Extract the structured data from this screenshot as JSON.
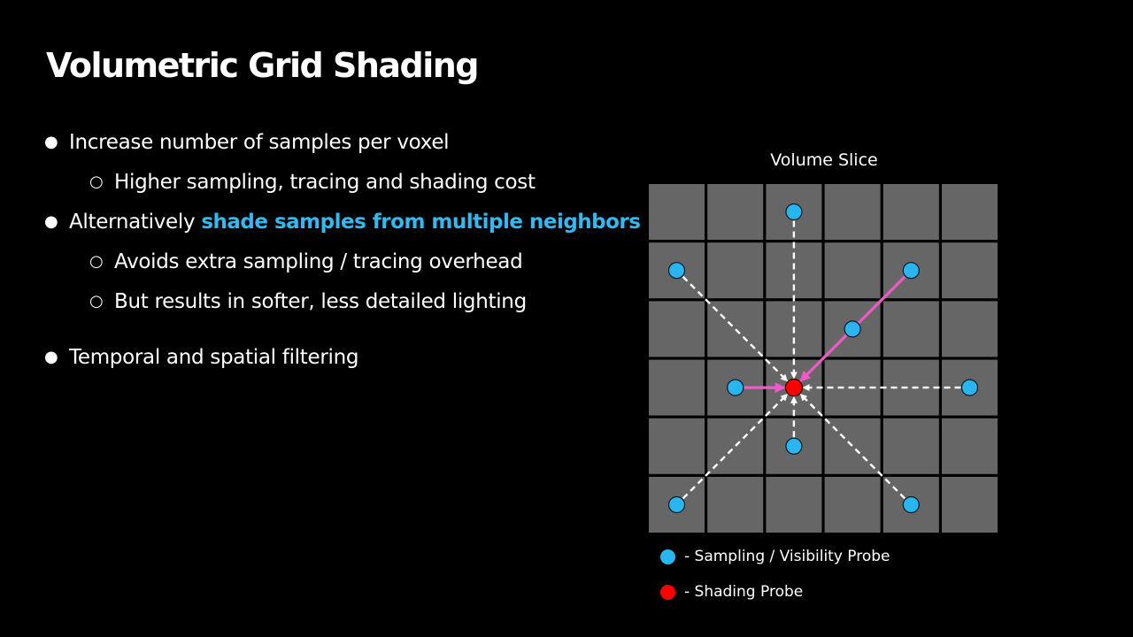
{
  "slide": {
    "title": "Volumetric Grid Shading"
  },
  "bullets": {
    "b1": "Increase number of samples per voxel",
    "b1_sub1": "Higher sampling, tracing and shading cost",
    "b2_prefix": "Alternatively ",
    "b2_highlight": "shade samples from multiple neighbors",
    "b2_sub1": "Avoids extra sampling / tracing overhead",
    "b2_sub2": "But results in softer, less detailed lighting",
    "b3": "Temporal and spatial filtering",
    "level1_marker": "●",
    "level2_marker": "○"
  },
  "diagram": {
    "title": "Volume Slice",
    "grid": {
      "rows": 6,
      "cols": 6
    },
    "shading_probe": {
      "row": 3,
      "col": 2
    },
    "sampling_probes": [
      {
        "row": 0,
        "col": 2,
        "link": "dashed"
      },
      {
        "row": 1,
        "col": 0,
        "link": "dashed"
      },
      {
        "row": 1,
        "col": 4,
        "link": "highlighted"
      },
      {
        "row": 2,
        "col": 3,
        "link": "none"
      },
      {
        "row": 3,
        "col": 1,
        "link": "highlighted"
      },
      {
        "row": 3,
        "col": 5,
        "link": "dashed"
      },
      {
        "row": 4,
        "col": 2,
        "link": "dashed"
      },
      {
        "row": 5,
        "col": 0,
        "link": "dashed"
      },
      {
        "row": 5,
        "col": 4,
        "link": "dashed"
      }
    ],
    "legend": [
      {
        "color": "#29b6f0",
        "label": "- Sampling / Visibility Probe"
      },
      {
        "color": "#ff0000",
        "label": "- Shading Probe"
      }
    ]
  },
  "colors": {
    "background": "#000000",
    "highlight_text": "#33b8f0",
    "cell_fill": "#666666",
    "grid_lines": "#000000",
    "sampling_probe": "#29b6f0",
    "shading_probe": "#ff0000",
    "highlight_arrow": "#f05ac8",
    "dashed_arrow": "#ffffff"
  }
}
